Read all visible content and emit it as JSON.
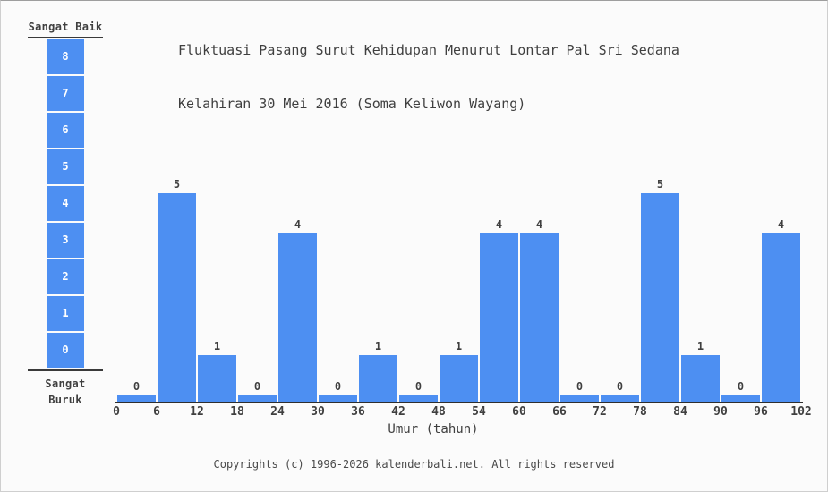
{
  "page": {
    "background": "#fbfbfb",
    "text_color": "#3f3f3f",
    "frame_border_color": "#cfcfcf"
  },
  "title": {
    "line1": "Fluktuasi Pasang Surut Kehidupan Menurut Lontar Pal Sri Sedana",
    "line2": "Kelahiran 30 Mei 2016 (Soma Keliwon Wayang)"
  },
  "scale_legend": {
    "top_label": "Sangat Baik",
    "bottom_label": "Sangat Buruk",
    "levels": [
      8,
      7,
      6,
      5,
      4,
      3,
      2,
      1,
      0
    ],
    "box_color": "#4d8ff2",
    "box_number_color": "#ffffff"
  },
  "chart_data": {
    "type": "bar",
    "title": "Fluktuasi Pasang Surut Kehidupan Menurut Lontar Pal Sri Sedana Kelahiran 30 Mei 2016 (Soma Keliwon Wayang)",
    "xlabel": "Umur (tahun)",
    "ylabel": "",
    "x_ticks": [
      0,
      6,
      12,
      18,
      24,
      30,
      36,
      42,
      48,
      54,
      60,
      66,
      72,
      78,
      84,
      90,
      96,
      102
    ],
    "bin_width_years": 6,
    "values": [
      0,
      5,
      1,
      0,
      4,
      0,
      1,
      0,
      1,
      4,
      4,
      0,
      0,
      5,
      1,
      0,
      4
    ],
    "ylim": [
      0,
      8
    ],
    "bar_color": "#4d8ff2",
    "axis_color": "#2e2e2e",
    "data_labels": true,
    "grid": false,
    "legend_position": "none"
  },
  "footer": {
    "copyright": "Copyrights (c) 1996-2026 kalenderbali.net. All rights reserved"
  }
}
